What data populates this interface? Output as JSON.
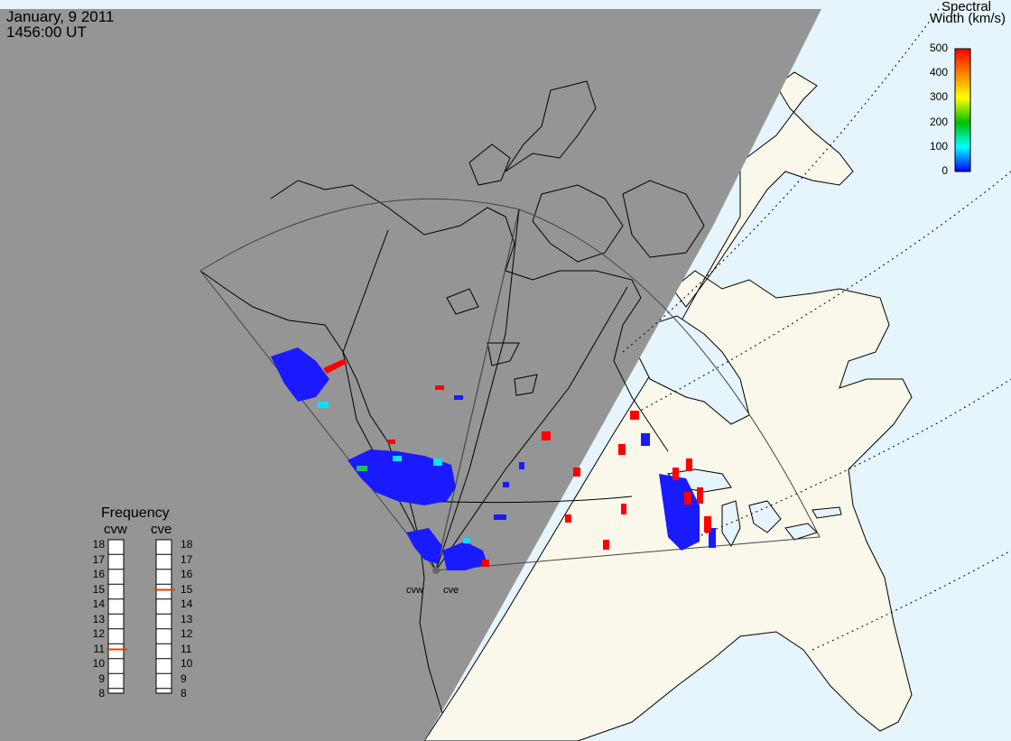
{
  "header": {
    "date": "January, 9 2011",
    "time": "1456:00 UT"
  },
  "colorbar": {
    "title_line1": "Spectral",
    "title_line2": "Width (km/s)",
    "ticks": [
      "500",
      "400",
      "300",
      "200",
      "100",
      "0"
    ],
    "colors": [
      "#ff0000",
      "#ff8000",
      "#ffff00",
      "#00c000",
      "#00ffff",
      "#0000ff"
    ]
  },
  "frequency": {
    "title": "Frequency",
    "columns": [
      {
        "name": "cvw",
        "selected": 11
      },
      {
        "name": "cve",
        "selected": 15
      }
    ],
    "ticks": [
      "18",
      "17",
      "16",
      "15",
      "14",
      "13",
      "12",
      "11",
      "10",
      "9",
      "8"
    ],
    "marker_color": "#e04000"
  },
  "radars": {
    "west_label": "cvw",
    "east_label": "cve"
  },
  "colors": {
    "night": "#959595",
    "land_day": "#faf8ea",
    "ocean": "#e6f4fb",
    "coast": "#000000"
  }
}
